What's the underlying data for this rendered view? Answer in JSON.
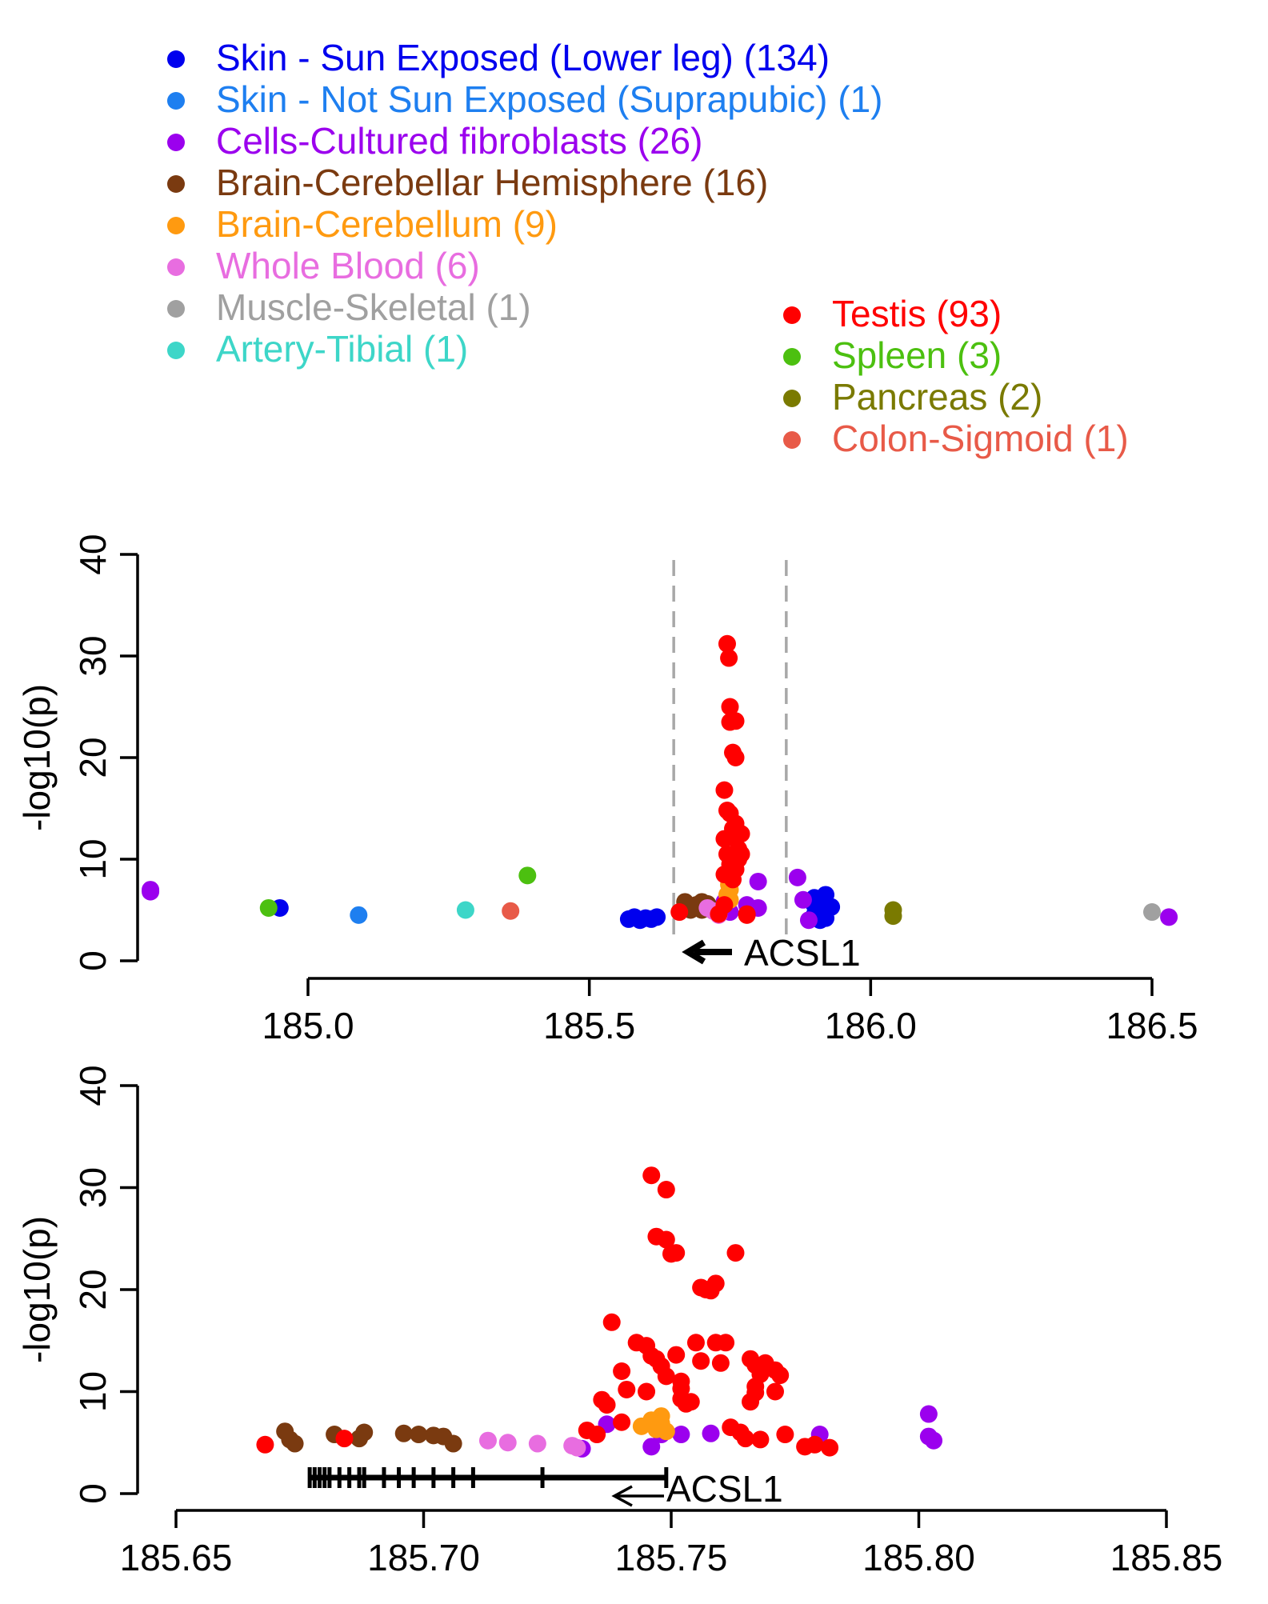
{
  "legend": {
    "items": [
      {
        "label": "Skin - Sun Exposed (Lower leg) (134)",
        "color": "#0000ee"
      },
      {
        "label": "Skin - Not Sun Exposed (Suprapubic) (1)",
        "color": "#1e7ff0"
      },
      {
        "label": "Cells-Cultured fibroblasts (26)",
        "color": "#9b00ee"
      },
      {
        "label": "Brain-Cerebellar Hemisphere (16)",
        "color": "#7a3a10"
      },
      {
        "label": "Brain-Cerebellum (9)",
        "color": "#ff9a10"
      },
      {
        "label": "Whole Blood (6)",
        "color": "#e86de0"
      },
      {
        "label": "Muscle-Skeletal (1)",
        "color": "#a0a0a0"
      },
      {
        "label": "Artery-Tibial (1)",
        "color": "#3dd6c8"
      },
      {
        "label": "Testis (93)",
        "color": "#ff0000"
      },
      {
        "label": "Spleen (3)",
        "color": "#4cc010"
      },
      {
        "label": "Pancreas (2)",
        "color": "#7a7a00"
      },
      {
        "label": "Colon-Sigmoid (1)",
        "color": "#e85a48"
      }
    ]
  },
  "chart_data": [
    {
      "type": "scatter",
      "ylabel": "-log10(p)",
      "xlim": [
        184.7,
        186.55
      ],
      "ylim": [
        0,
        40
      ],
      "xticks": [
        "185.0",
        "185.5",
        "186.0",
        "186.5"
      ],
      "yticks": [
        "0",
        "10",
        "20",
        "30",
        "40"
      ],
      "gene_label": "ACSL1",
      "gene_region": [
        185.65,
        185.85
      ],
      "series": [
        {
          "name": "Skin - Sun Exposed (Lower leg) (134)",
          "color": "#0000ee",
          "points": [
            [
              184.95,
              5.2
            ],
            [
              185.57,
              4.1
            ],
            [
              185.58,
              4.3
            ],
            [
              185.59,
              4.0
            ],
            [
              185.6,
              4.2
            ],
            [
              185.61,
              4.1
            ],
            [
              185.62,
              4.3
            ],
            [
              185.9,
              4.5
            ],
            [
              185.9,
              5.5
            ],
            [
              185.91,
              6.0
            ],
            [
              185.92,
              6.5
            ],
            [
              185.91,
              5.0
            ],
            [
              185.92,
              4.2
            ],
            [
              185.9,
              6.2
            ],
            [
              185.93,
              5.3
            ],
            [
              185.91,
              4.0
            ]
          ]
        },
        {
          "name": "Skin - Not Sun Exposed (Suprapubic) (1)",
          "color": "#1e7ff0",
          "points": [
            [
              185.09,
              4.5
            ]
          ]
        },
        {
          "name": "Cells-Cultured fibroblasts (26)",
          "color": "#9b00ee",
          "points": [
            [
              184.72,
              7.0
            ],
            [
              184.72,
              6.8
            ],
            [
              185.74,
              5.8
            ],
            [
              185.75,
              4.8
            ],
            [
              185.78,
              5.5
            ],
            [
              185.8,
              7.8
            ],
            [
              185.8,
              5.2
            ],
            [
              185.87,
              8.2
            ],
            [
              185.88,
              6.0
            ],
            [
              185.89,
              4.0
            ],
            [
              186.53,
              4.3
            ]
          ]
        },
        {
          "name": "Brain-Cerebellar Hemisphere (16)",
          "color": "#7a3a10",
          "points": [
            [
              185.67,
              5.8
            ],
            [
              185.68,
              5.0
            ],
            [
              185.69,
              5.5
            ],
            [
              185.7,
              5.8
            ],
            [
              185.7,
              5.0
            ],
            [
              185.71,
              5.6
            ]
          ]
        },
        {
          "name": "Brain-Cerebellum (9)",
          "color": "#ff9a10",
          "points": [
            [
              185.745,
              6.5
            ],
            [
              185.75,
              7.0
            ],
            [
              185.75,
              6.0
            ],
            [
              185.748,
              7.5
            ]
          ]
        },
        {
          "name": "Whole Blood (6)",
          "color": "#e86de0",
          "points": [
            [
              185.71,
              5.2
            ],
            [
              185.72,
              4.9
            ],
            [
              185.73,
              4.8
            ],
            [
              185.73,
              4.5
            ]
          ]
        },
        {
          "name": "Muscle-Skeletal (1)",
          "color": "#a0a0a0",
          "points": [
            [
              186.5,
              4.8
            ]
          ]
        },
        {
          "name": "Artery-Tibial (1)",
          "color": "#3dd6c8",
          "points": [
            [
              185.28,
              5.0
            ]
          ]
        },
        {
          "name": "Testis (93)",
          "color": "#ff0000",
          "points": [
            [
              185.66,
              4.8
            ],
            [
              185.73,
              4.6
            ],
            [
              185.74,
              5.5
            ],
            [
              185.74,
              8.5
            ],
            [
              185.745,
              31.2
            ],
            [
              185.748,
              29.8
            ],
            [
              185.75,
              25.0
            ],
            [
              185.75,
              23.5
            ],
            [
              185.76,
              23.6
            ],
            [
              185.755,
              20.5
            ],
            [
              185.76,
              20.0
            ],
            [
              185.74,
              16.8
            ],
            [
              185.745,
              14.8
            ],
            [
              185.75,
              14.5
            ],
            [
              185.755,
              13.0
            ],
            [
              185.76,
              13.5
            ],
            [
              185.76,
              12.0
            ],
            [
              185.765,
              11.0
            ],
            [
              185.74,
              12.0
            ],
            [
              185.745,
              10.5
            ],
            [
              185.75,
              9.5
            ],
            [
              185.76,
              9.0
            ],
            [
              185.765,
              10.0
            ],
            [
              185.77,
              12.5
            ],
            [
              185.77,
              10.5
            ],
            [
              185.755,
              8.0
            ],
            [
              185.78,
              4.5
            ],
            [
              185.78,
              4.6
            ]
          ]
        },
        {
          "name": "Spleen (3)",
          "color": "#4cc010",
          "points": [
            [
              184.93,
              5.2
            ],
            [
              185.39,
              8.4
            ]
          ]
        },
        {
          "name": "Pancreas (2)",
          "color": "#7a7a00",
          "points": [
            [
              186.04,
              5.0
            ],
            [
              186.04,
              4.4
            ]
          ]
        },
        {
          "name": "Colon-Sigmoid (1)",
          "color": "#e85a48",
          "points": [
            [
              185.36,
              4.9
            ]
          ]
        }
      ]
    },
    {
      "type": "scatter",
      "ylabel": "-log10(p)",
      "xlim": [
        185.65,
        185.85
      ],
      "ylim": [
        0,
        40
      ],
      "xticks": [
        "185.65",
        "185.70",
        "185.75",
        "185.80",
        "185.85"
      ],
      "yticks": [
        "0",
        "10",
        "20",
        "30",
        "40"
      ],
      "gene_label": "ACSL1",
      "gene_exons": [
        185.677,
        185.678,
        185.679,
        185.68,
        185.681,
        185.683,
        185.685,
        185.687,
        185.688,
        185.692,
        185.695,
        185.698,
        185.702,
        185.706,
        185.71,
        185.724,
        185.749
      ],
      "series": [
        {
          "name": "Skin - Sun Exposed (Lower leg) (134)",
          "color": "#0000ee",
          "points": []
        },
        {
          "name": "Cells-Cultured fibroblasts (26)",
          "color": "#9b00ee",
          "points": [
            [
              185.732,
              4.4
            ],
            [
              185.737,
              6.8
            ],
            [
              185.746,
              4.6
            ],
            [
              185.748,
              5.8
            ],
            [
              185.752,
              5.8
            ],
            [
              185.758,
              5.9
            ],
            [
              185.78,
              5.8
            ],
            [
              185.802,
              7.8
            ],
            [
              185.803,
              5.2
            ],
            [
              185.802,
              5.6
            ]
          ]
        },
        {
          "name": "Brain-Cerebellar Hemisphere (16)",
          "color": "#7a3a10",
          "points": [
            [
              185.672,
              6.1
            ],
            [
              185.673,
              5.3
            ],
            [
              185.674,
              4.9
            ],
            [
              185.682,
              5.8
            ],
            [
              185.687,
              5.4
            ],
            [
              185.688,
              6.0
            ],
            [
              185.696,
              5.9
            ],
            [
              185.699,
              5.8
            ],
            [
              185.702,
              5.7
            ],
            [
              185.704,
              5.6
            ],
            [
              185.706,
              4.9
            ]
          ]
        },
        {
          "name": "Brain-Cerebellum (9)",
          "color": "#ff9a10",
          "points": [
            [
              185.744,
              6.6
            ],
            [
              185.746,
              7.2
            ],
            [
              185.747,
              6.3
            ],
            [
              185.748,
              7.6
            ],
            [
              185.749,
              6.1
            ],
            [
              185.748,
              6.9
            ]
          ]
        },
        {
          "name": "Whole Blood (6)",
          "color": "#e86de0",
          "points": [
            [
              185.713,
              5.2
            ],
            [
              185.717,
              5.0
            ],
            [
              185.723,
              4.9
            ],
            [
              185.73,
              4.7
            ],
            [
              185.731,
              4.5
            ]
          ]
        },
        {
          "name": "Testis (93)",
          "color": "#ff0000",
          "points": [
            [
              185.668,
              4.8
            ],
            [
              185.684,
              5.4
            ],
            [
              185.733,
              6.2
            ],
            [
              185.735,
              5.8
            ],
            [
              185.737,
              8.7
            ],
            [
              185.736,
              9.2
            ],
            [
              185.738,
              16.8
            ],
            [
              185.74,
              12.0
            ],
            [
              185.741,
              10.2
            ],
            [
              185.74,
              7.0
            ],
            [
              185.743,
              14.8
            ],
            [
              185.745,
              14.5
            ],
            [
              185.746,
              13.5
            ],
            [
              185.747,
              13.2
            ],
            [
              185.748,
              12.5
            ],
            [
              185.749,
              11.5
            ],
            [
              185.745,
              10.0
            ],
            [
              185.746,
              31.2
            ],
            [
              185.749,
              29.8
            ],
            [
              185.747,
              25.2
            ],
            [
              185.749,
              24.9
            ],
            [
              185.75,
              23.5
            ],
            [
              185.751,
              23.6
            ],
            [
              185.751,
              13.6
            ],
            [
              185.752,
              11.0
            ],
            [
              185.752,
              10.3
            ],
            [
              185.752,
              9.3
            ],
            [
              185.753,
              8.8
            ],
            [
              185.754,
              9.0
            ],
            [
              185.755,
              14.8
            ],
            [
              185.756,
              20.2
            ],
            [
              185.757,
              20.0
            ],
            [
              185.758,
              19.9
            ],
            [
              185.759,
              20.6
            ],
            [
              185.756,
              13.0
            ],
            [
              185.76,
              12.8
            ],
            [
              185.759,
              14.8
            ],
            [
              185.761,
              14.8
            ],
            [
              185.763,
              23.6
            ],
            [
              185.762,
              6.5
            ],
            [
              185.764,
              6.0
            ],
            [
              185.765,
              5.4
            ],
            [
              185.766,
              13.2
            ],
            [
              185.767,
              12.6
            ],
            [
              185.768,
              12.5
            ],
            [
              185.768,
              11.7
            ],
            [
              185.767,
              10.5
            ],
            [
              185.767,
              9.9
            ],
            [
              185.766,
              9.0
            ],
            [
              185.768,
              5.3
            ],
            [
              185.769,
              12.8
            ],
            [
              185.771,
              12.1
            ],
            [
              185.772,
              11.6
            ],
            [
              185.771,
              10.0
            ],
            [
              185.773,
              5.8
            ],
            [
              185.777,
              4.6
            ],
            [
              185.779,
              4.8
            ],
            [
              185.782,
              4.5
            ]
          ]
        }
      ]
    }
  ]
}
